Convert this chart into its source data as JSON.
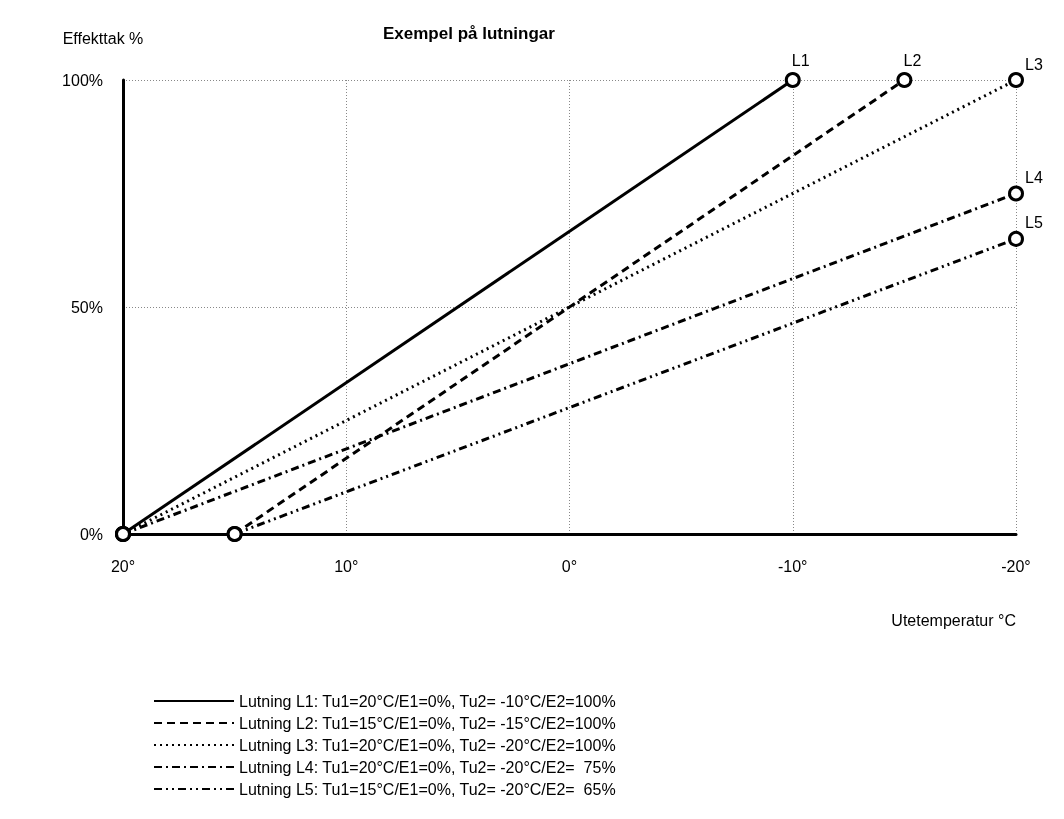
{
  "chart_data": {
    "type": "line",
    "title": "Exempel på lutningar",
    "xlabel": "Utetemperatur °C",
    "ylabel": "Effekttak %",
    "xlim": [
      20,
      -20
    ],
    "xticks": [
      {
        "value": 20,
        "label": "20°"
      },
      {
        "value": 10,
        "label": "10°"
      },
      {
        "value": 0,
        "label": "0°"
      },
      {
        "value": -10,
        "label": "-10°"
      },
      {
        "value": -20,
        "label": "-20°"
      }
    ],
    "ylim": [
      0,
      100
    ],
    "yticks": [
      {
        "value": 0,
        "label": "0%"
      },
      {
        "value": 50,
        "label": "50%"
      },
      {
        "value": 100,
        "label": "100%"
      }
    ],
    "grid": true,
    "legend": "bottom",
    "marker": "circle",
    "series": [
      {
        "name": "Lutning L1: Tu1=20°C/E1=0%, Tu2= -10°C/E2=100%",
        "color": "#000000",
        "line_style": "solid",
        "x": [
          20,
          -10
        ],
        "values": [
          0,
          100
        ]
      },
      {
        "name": "Lutning L2: Tu1=15°C/E1=0%, Tu2= -15°C/E2=100%",
        "color": "#000000",
        "line_style": "dashed",
        "x": [
          15,
          -15
        ],
        "values": [
          0,
          100
        ]
      },
      {
        "name": "Lutning L3: Tu1=20°C/E1=0%, Tu2= -20°C/E2=100%",
        "color": "#000000",
        "line_style": "dotted",
        "x": [
          20,
          -20
        ],
        "values": [
          0,
          100
        ]
      },
      {
        "name": "Lutning L4: Tu1=20°C/E1=0%, Tu2= -20°C/E2=  75%",
        "color": "#000000",
        "line_style": "dashdot",
        "x": [
          20,
          -20
        ],
        "values": [
          0,
          75
        ]
      },
      {
        "name": "Lutning L5: Tu1=15°C/E1=0%, Tu2= -20°C/E2=  65%",
        "color": "#000000",
        "line_style": "dashdotdot",
        "x": [
          15,
          -20
        ],
        "values": [
          0,
          65
        ]
      }
    ],
    "annotations": [
      {
        "text": "L1",
        "x": -10,
        "y": 100
      },
      {
        "text": "L2",
        "x": -15,
        "y": 100
      },
      {
        "text": "L3",
        "x": -20,
        "y": 100
      },
      {
        "text": "L4",
        "x": -20,
        "y": 75
      },
      {
        "text": "L5",
        "x": -20,
        "y": 65
      }
    ]
  }
}
